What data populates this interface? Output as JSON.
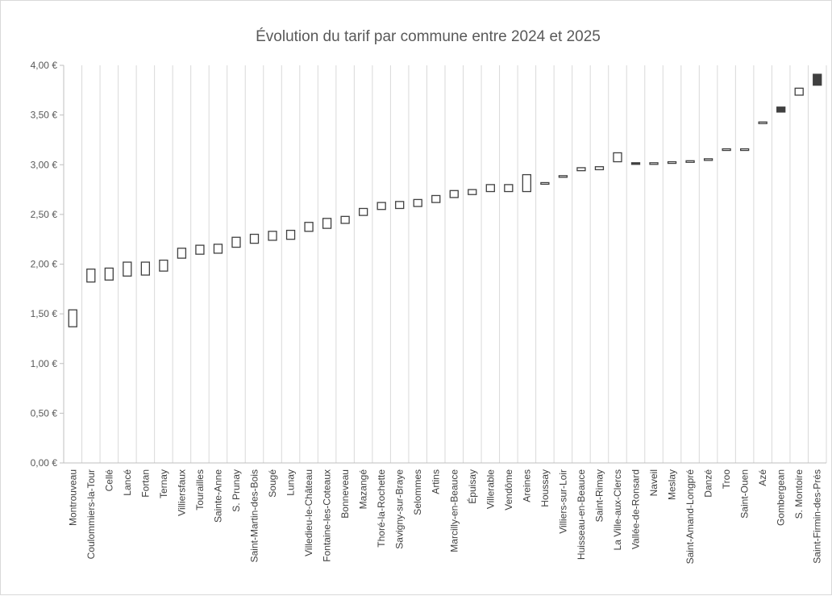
{
  "chart_data": {
    "type": "candlestick",
    "title": "Évolution du tarif par commune entre 2024 et 2025",
    "xlabel": "",
    "ylabel": "",
    "ylim": [
      0,
      4
    ],
    "y_ticks": [
      "0,00 €",
      "0,50 €",
      "1,00 €",
      "1,50 €",
      "2,00 €",
      "2,50 €",
      "3,00 €",
      "3,50 €",
      "4,00 €"
    ],
    "grid": {
      "vertical": true,
      "horizontal": false
    },
    "legend": "none",
    "colors": {
      "increase": "#ffffff",
      "decrease": "#404040",
      "outline": "#404040",
      "grid": "#d9d9d9",
      "axis": "#bfbfbf"
    },
    "categories": [
      "Montrouveau",
      "Coulommiers-la-Tour",
      "Cellé",
      "Lancé",
      "Fortan",
      "Ternay",
      "Villiersfaux",
      "Tourailles",
      "Sainte-Anne",
      "S. Prunay",
      "Saint-Martin-des-Bois",
      "Sougé",
      "Lunay",
      "Villedieu-le-Château",
      "Fontaine-les-Coteaux",
      "Bonneveau",
      "Mazangé",
      "Thoré-la-Rochette",
      "Savigny-sur-Braye",
      "Selommes",
      "Artins",
      "Marcilly-en-Beauce",
      "Épuisay",
      "Villerable",
      "Vendôme",
      "Areines",
      "Houssay",
      "Villiers-sur-Loir",
      "Huisseau-en-Beauce",
      "Saint-Rimay",
      "La Ville-aux-Clercs",
      "Vallée-de-Ronsard",
      "Naveil",
      "Meslay",
      "Saint-Amand-Longpré",
      "Danzé",
      "Troo",
      "Saint-Ouen",
      "Azé",
      "Gombergean",
      "S. Montoire",
      "Saint-Firmin-des-Prés"
    ],
    "series": [
      {
        "values_2024": [
          1.37,
          1.82,
          1.84,
          1.88,
          1.89,
          1.93,
          2.06,
          2.1,
          2.11,
          2.17,
          2.21,
          2.24,
          2.25,
          2.33,
          2.36,
          2.41,
          2.49,
          2.55,
          2.56,
          2.58,
          2.62,
          2.67,
          2.7,
          2.73,
          2.73,
          2.73,
          2.81,
          2.88,
          2.94,
          2.95,
          3.03,
          3.02,
          3.01,
          3.02,
          3.03,
          3.05,
          3.15,
          3.15,
          3.42,
          3.58,
          3.7,
          3.91
        ],
        "values_2025": [
          1.54,
          1.95,
          1.96,
          2.02,
          2.02,
          2.04,
          2.16,
          2.19,
          2.2,
          2.27,
          2.3,
          2.33,
          2.34,
          2.42,
          2.46,
          2.48,
          2.56,
          2.62,
          2.63,
          2.65,
          2.69,
          2.74,
          2.75,
          2.8,
          2.8,
          2.9,
          2.82,
          2.89,
          2.97,
          2.98,
          3.12,
          3.01,
          3.02,
          3.03,
          3.04,
          3.06,
          3.16,
          3.16,
          3.43,
          3.53,
          3.77,
          3.8
        ]
      }
    ]
  }
}
